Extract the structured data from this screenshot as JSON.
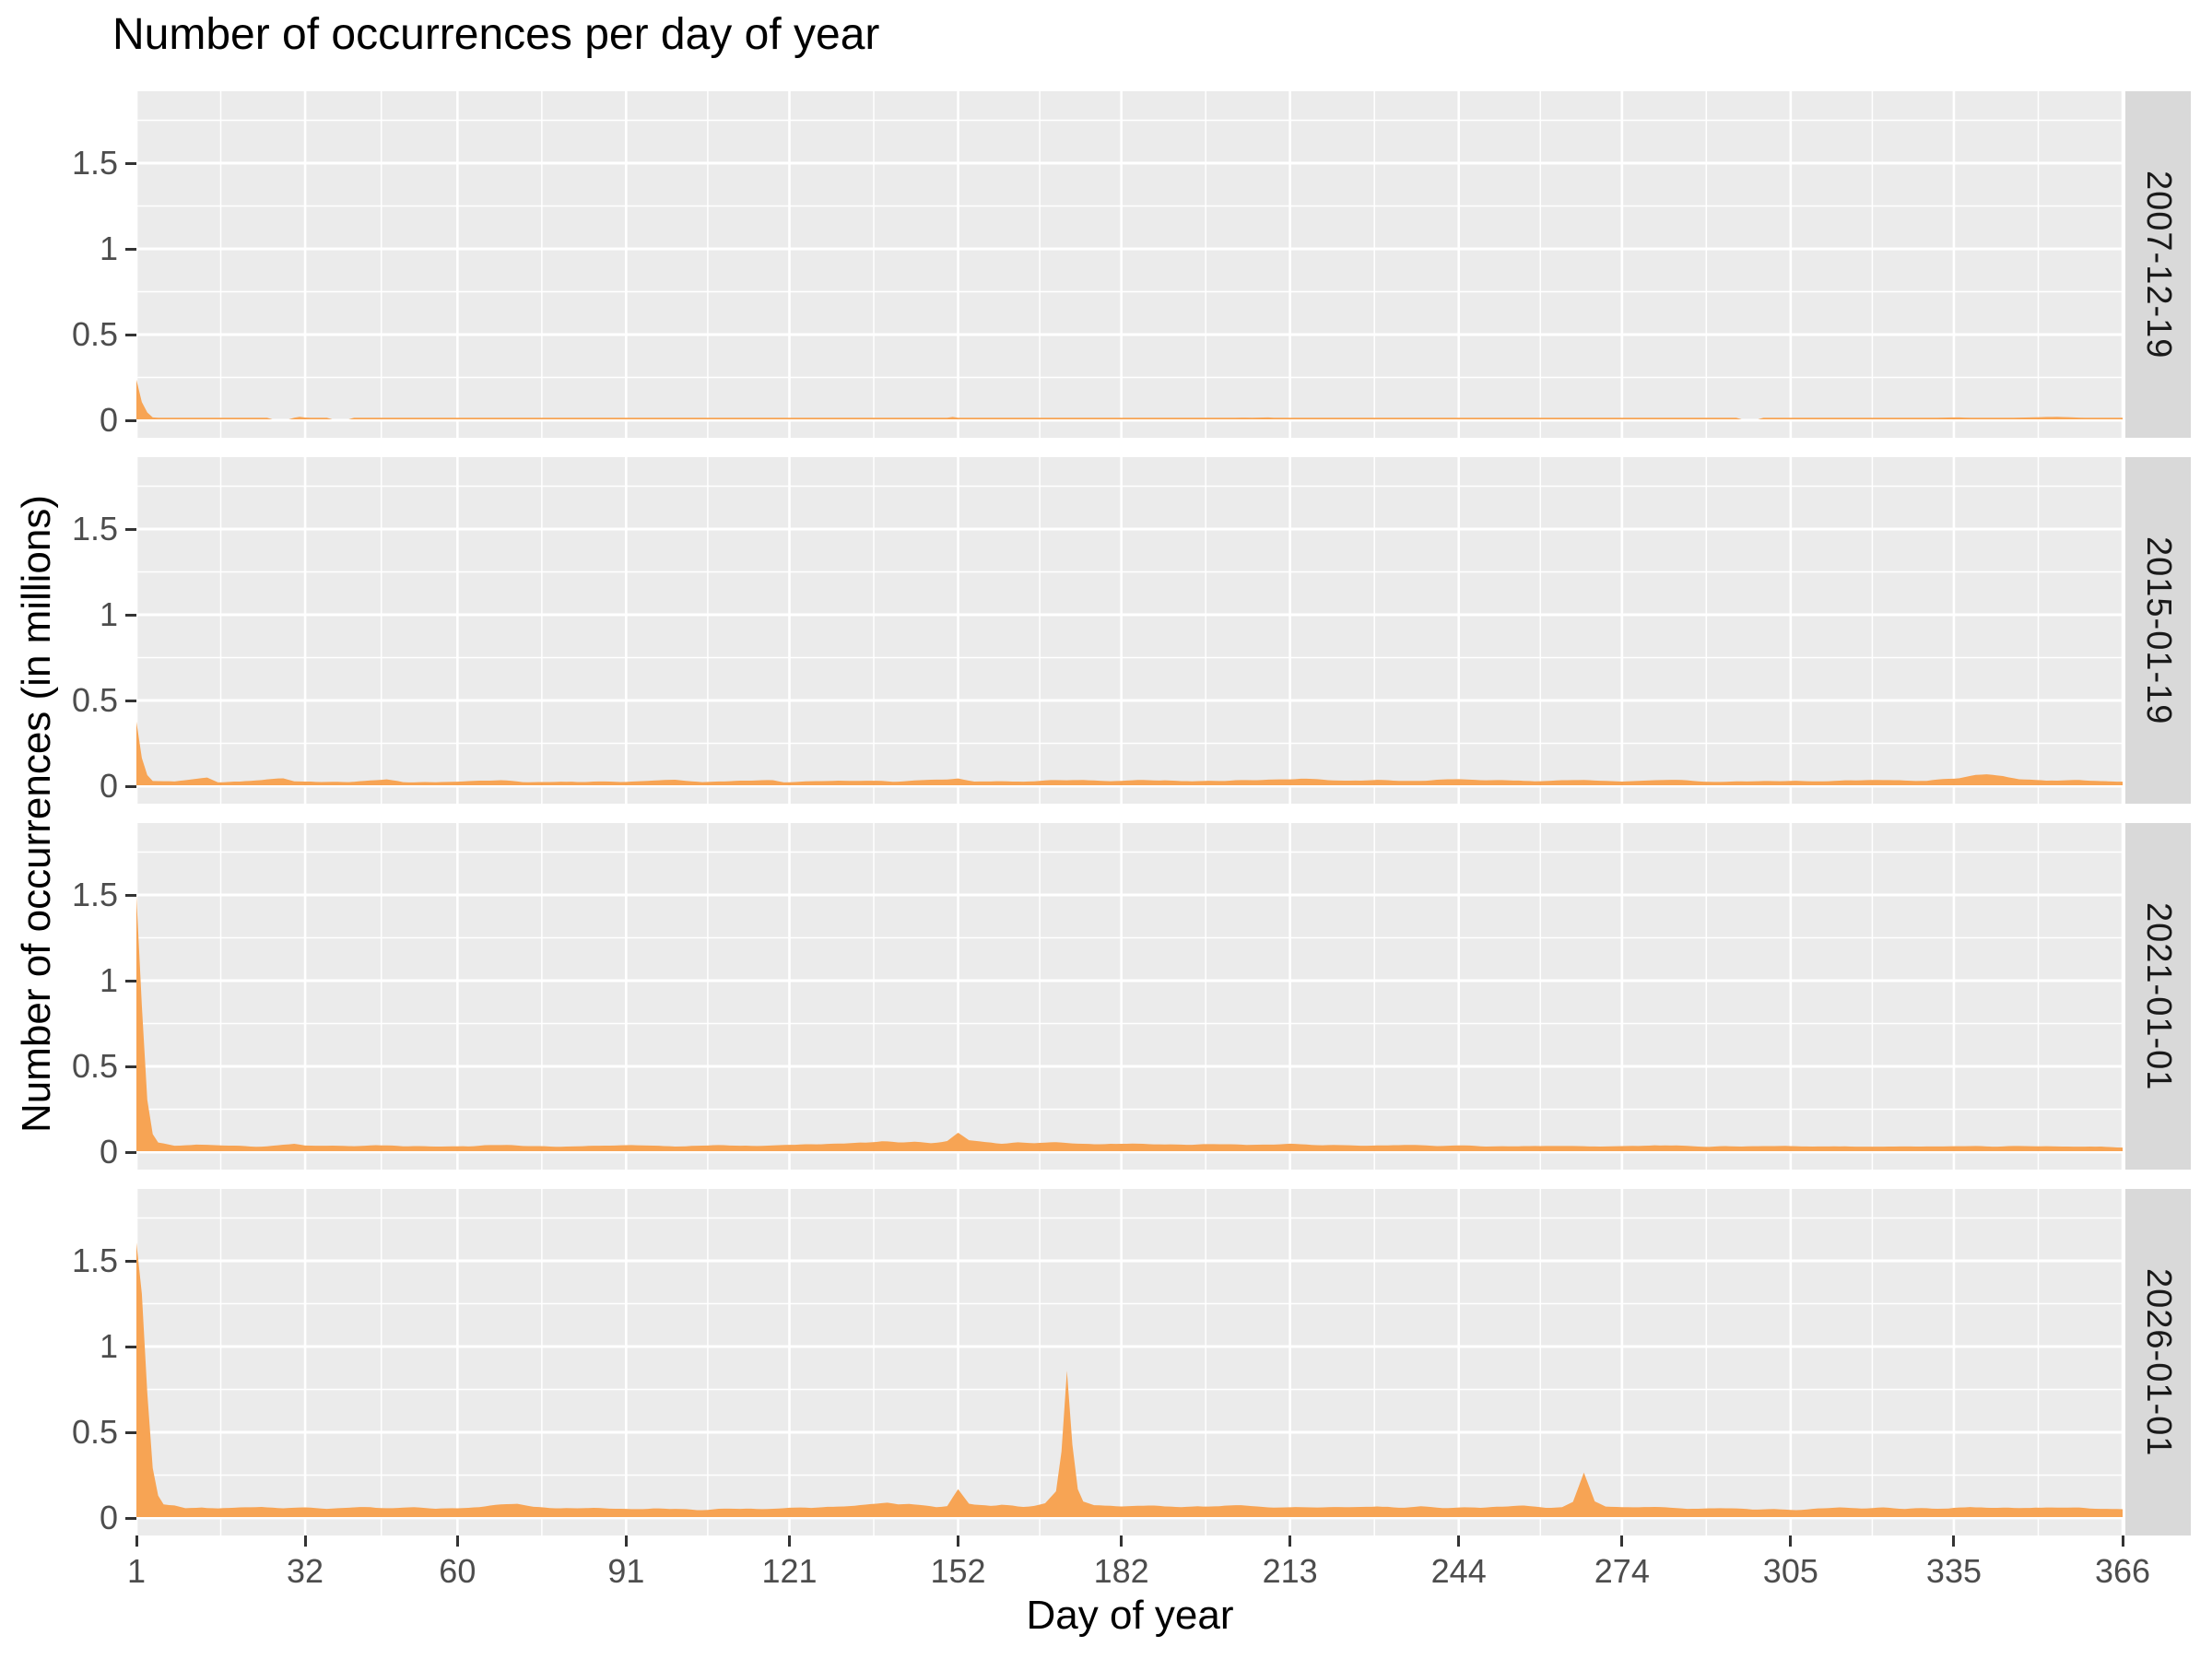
{
  "title": "Number of occurrences per day of year",
  "colors": {
    "area_fill": "#F7A454",
    "panel_background": "#EBEBEB",
    "strip_background": "#D9D9D9",
    "gridline": "#FFFFFF",
    "tick_mark": "#333333",
    "tick_label_text": "#4D4D4D",
    "title_text": "#000000"
  },
  "chart_data": {
    "type": "area",
    "title": "Number of occurrences per day of year",
    "xlabel": "Day of year",
    "ylabel": "Number of occurrences (in millions)",
    "legend": "none",
    "grid": "white major and minor gridlines on grey panels",
    "facet_strip_position": "right",
    "x_ticks": [
      1,
      32,
      60,
      91,
      121,
      152,
      182,
      213,
      244,
      274,
      305,
      335,
      366
    ],
    "y_ticks": [
      0,
      0.5,
      1,
      1.5
    ],
    "y_tick_labels": [
      "0",
      "0.5",
      "1",
      "1.5"
    ],
    "xlim": [
      1,
      366
    ],
    "ylim_display": [
      -0.1,
      1.92
    ],
    "units": "millions of occurrences per day",
    "facets": [
      {
        "label": "2007-12-19",
        "noise": 0.0025,
        "gaps": [
          [
            26,
            29
          ],
          [
            37,
            40
          ],
          [
            296,
            299
          ]
        ],
        "keypoints": [
          [
            1,
            0.23
          ],
          [
            2,
            0.1
          ],
          [
            3,
            0.04
          ],
          [
            4,
            0.012
          ],
          [
            6,
            0.006
          ],
          [
            20,
            0.005
          ],
          [
            30,
            0.006
          ],
          [
            31,
            0.014
          ],
          [
            33,
            0.006
          ],
          [
            60,
            0.005
          ],
          [
            91,
            0.006
          ],
          [
            120,
            0.005
          ],
          [
            150,
            0.008
          ],
          [
            151,
            0.014
          ],
          [
            153,
            0.006
          ],
          [
            182,
            0.006
          ],
          [
            209,
            0.01
          ],
          [
            212,
            0.006
          ],
          [
            244,
            0.005
          ],
          [
            274,
            0.006
          ],
          [
            305,
            0.005
          ],
          [
            330,
            0.007
          ],
          [
            336,
            0.012
          ],
          [
            341,
            0.007
          ],
          [
            354,
            0.014
          ],
          [
            359,
            0.009
          ],
          [
            366,
            0.007
          ]
        ]
      },
      {
        "label": "2015-01-19",
        "noise": 0.006,
        "gaps": [],
        "keypoints": [
          [
            1,
            0.37
          ],
          [
            2,
            0.16
          ],
          [
            3,
            0.06
          ],
          [
            4,
            0.025
          ],
          [
            8,
            0.02
          ],
          [
            14,
            0.045
          ],
          [
            16,
            0.02
          ],
          [
            20,
            0.02
          ],
          [
            28,
            0.04
          ],
          [
            30,
            0.025
          ],
          [
            35,
            0.022
          ],
          [
            40,
            0.02
          ],
          [
            47,
            0.035
          ],
          [
            50,
            0.02
          ],
          [
            55,
            0.018
          ],
          [
            60,
            0.02
          ],
          [
            68,
            0.03
          ],
          [
            72,
            0.02
          ],
          [
            80,
            0.02
          ],
          [
            90,
            0.022
          ],
          [
            100,
            0.035
          ],
          [
            105,
            0.02
          ],
          [
            110,
            0.022
          ],
          [
            118,
            0.03
          ],
          [
            120,
            0.02
          ],
          [
            130,
            0.025
          ],
          [
            140,
            0.022
          ],
          [
            150,
            0.035
          ],
          [
            152,
            0.04
          ],
          [
            155,
            0.022
          ],
          [
            165,
            0.025
          ],
          [
            175,
            0.03
          ],
          [
            180,
            0.025
          ],
          [
            190,
            0.028
          ],
          [
            195,
            0.022
          ],
          [
            205,
            0.03
          ],
          [
            210,
            0.035
          ],
          [
            215,
            0.04
          ],
          [
            220,
            0.028
          ],
          [
            228,
            0.03
          ],
          [
            235,
            0.025
          ],
          [
            244,
            0.035
          ],
          [
            250,
            0.03
          ],
          [
            258,
            0.025
          ],
          [
            265,
            0.03
          ],
          [
            274,
            0.025
          ],
          [
            280,
            0.03
          ],
          [
            290,
            0.025
          ],
          [
            300,
            0.022
          ],
          [
            310,
            0.025
          ],
          [
            320,
            0.03
          ],
          [
            330,
            0.025
          ],
          [
            336,
            0.04
          ],
          [
            339,
            0.06
          ],
          [
            341,
            0.065
          ],
          [
            344,
            0.055
          ],
          [
            347,
            0.035
          ],
          [
            352,
            0.025
          ],
          [
            358,
            0.03
          ],
          [
            362,
            0.022
          ],
          [
            366,
            0.02
          ]
        ]
      },
      {
        "label": "2021-01-01",
        "noise": 0.006,
        "gaps": [],
        "keypoints": [
          [
            1,
            1.49
          ],
          [
            2,
            0.85
          ],
          [
            3,
            0.3
          ],
          [
            4,
            0.1
          ],
          [
            5,
            0.05
          ],
          [
            8,
            0.03
          ],
          [
            12,
            0.035
          ],
          [
            18,
            0.03
          ],
          [
            25,
            0.028
          ],
          [
            30,
            0.04
          ],
          [
            32,
            0.03
          ],
          [
            40,
            0.03
          ],
          [
            45,
            0.035
          ],
          [
            50,
            0.028
          ],
          [
            60,
            0.03
          ],
          [
            70,
            0.035
          ],
          [
            75,
            0.028
          ],
          [
            85,
            0.03
          ],
          [
            91,
            0.032
          ],
          [
            100,
            0.03
          ],
          [
            108,
            0.035
          ],
          [
            115,
            0.03
          ],
          [
            121,
            0.035
          ],
          [
            126,
            0.04
          ],
          [
            130,
            0.045
          ],
          [
            134,
            0.05
          ],
          [
            138,
            0.055
          ],
          [
            141,
            0.05
          ],
          [
            144,
            0.055
          ],
          [
            147,
            0.05
          ],
          [
            150,
            0.06
          ],
          [
            152,
            0.105
          ],
          [
            154,
            0.06
          ],
          [
            157,
            0.05
          ],
          [
            160,
            0.045
          ],
          [
            163,
            0.05
          ],
          [
            166,
            0.045
          ],
          [
            170,
            0.05
          ],
          [
            174,
            0.045
          ],
          [
            178,
            0.04
          ],
          [
            182,
            0.042
          ],
          [
            186,
            0.045
          ],
          [
            190,
            0.04
          ],
          [
            195,
            0.038
          ],
          [
            200,
            0.04
          ],
          [
            205,
            0.035
          ],
          [
            210,
            0.04
          ],
          [
            213,
            0.045
          ],
          [
            218,
            0.035
          ],
          [
            225,
            0.032
          ],
          [
            232,
            0.035
          ],
          [
            240,
            0.03
          ],
          [
            244,
            0.032
          ],
          [
            252,
            0.03
          ],
          [
            260,
            0.032
          ],
          [
            268,
            0.03
          ],
          [
            274,
            0.032
          ],
          [
            280,
            0.035
          ],
          [
            285,
            0.03
          ],
          [
            290,
            0.028
          ],
          [
            300,
            0.03
          ],
          [
            305,
            0.028
          ],
          [
            312,
            0.03
          ],
          [
            320,
            0.028
          ],
          [
            328,
            0.03
          ],
          [
            335,
            0.028
          ],
          [
            342,
            0.03
          ],
          [
            350,
            0.028
          ],
          [
            356,
            0.03
          ],
          [
            360,
            0.026
          ],
          [
            366,
            0.025
          ]
        ]
      },
      {
        "label": "2026-01-01",
        "noise": 0.008,
        "gaps": [],
        "keypoints": [
          [
            1,
            1.6
          ],
          [
            2,
            1.3
          ],
          [
            3,
            0.72
          ],
          [
            4,
            0.28
          ],
          [
            5,
            0.12
          ],
          [
            6,
            0.07
          ],
          [
            8,
            0.065
          ],
          [
            10,
            0.05
          ],
          [
            13,
            0.055
          ],
          [
            16,
            0.05
          ],
          [
            20,
            0.055
          ],
          [
            24,
            0.06
          ],
          [
            28,
            0.05
          ],
          [
            32,
            0.055
          ],
          [
            36,
            0.05
          ],
          [
            40,
            0.055
          ],
          [
            44,
            0.06
          ],
          [
            48,
            0.05
          ],
          [
            52,
            0.055
          ],
          [
            56,
            0.05
          ],
          [
            60,
            0.055
          ],
          [
            64,
            0.06
          ],
          [
            68,
            0.07
          ],
          [
            71,
            0.075
          ],
          [
            74,
            0.06
          ],
          [
            78,
            0.055
          ],
          [
            82,
            0.05
          ],
          [
            86,
            0.055
          ],
          [
            91,
            0.05
          ],
          [
            95,
            0.045
          ],
          [
            100,
            0.05
          ],
          [
            104,
            0.045
          ],
          [
            108,
            0.05
          ],
          [
            112,
            0.045
          ],
          [
            116,
            0.05
          ],
          [
            121,
            0.055
          ],
          [
            125,
            0.05
          ],
          [
            128,
            0.06
          ],
          [
            131,
            0.065
          ],
          [
            134,
            0.07
          ],
          [
            137,
            0.075
          ],
          [
            139,
            0.08
          ],
          [
            141,
            0.07
          ],
          [
            143,
            0.075
          ],
          [
            145,
            0.07
          ],
          [
            148,
            0.06
          ],
          [
            150,
            0.065
          ],
          [
            152,
            0.16
          ],
          [
            154,
            0.08
          ],
          [
            156,
            0.07
          ],
          [
            158,
            0.065
          ],
          [
            160,
            0.07
          ],
          [
            162,
            0.065
          ],
          [
            164,
            0.06
          ],
          [
            166,
            0.065
          ],
          [
            168,
            0.08
          ],
          [
            170,
            0.15
          ],
          [
            171,
            0.38
          ],
          [
            172,
            0.85
          ],
          [
            173,
            0.42
          ],
          [
            174,
            0.16
          ],
          [
            175,
            0.09
          ],
          [
            177,
            0.07
          ],
          [
            180,
            0.065
          ],
          [
            182,
            0.06
          ],
          [
            185,
            0.065
          ],
          [
            188,
            0.07
          ],
          [
            190,
            0.065
          ],
          [
            193,
            0.06
          ],
          [
            196,
            0.065
          ],
          [
            200,
            0.06
          ],
          [
            204,
            0.065
          ],
          [
            208,
            0.06
          ],
          [
            213,
            0.055
          ],
          [
            217,
            0.06
          ],
          [
            221,
            0.055
          ],
          [
            225,
            0.06
          ],
          [
            229,
            0.065
          ],
          [
            233,
            0.055
          ],
          [
            237,
            0.06
          ],
          [
            241,
            0.055
          ],
          [
            244,
            0.06
          ],
          [
            248,
            0.055
          ],
          [
            252,
            0.06
          ],
          [
            256,
            0.065
          ],
          [
            260,
            0.055
          ],
          [
            263,
            0.06
          ],
          [
            265,
            0.09
          ],
          [
            267,
            0.26
          ],
          [
            269,
            0.09
          ],
          [
            271,
            0.06
          ],
          [
            274,
            0.055
          ],
          [
            278,
            0.06
          ],
          [
            282,
            0.055
          ],
          [
            286,
            0.05
          ],
          [
            290,
            0.055
          ],
          [
            294,
            0.05
          ],
          [
            298,
            0.045
          ],
          [
            302,
            0.05
          ],
          [
            306,
            0.045
          ],
          [
            310,
            0.05
          ],
          [
            314,
            0.055
          ],
          [
            318,
            0.05
          ],
          [
            322,
            0.055
          ],
          [
            326,
            0.05
          ],
          [
            330,
            0.055
          ],
          [
            334,
            0.05
          ],
          [
            338,
            0.06
          ],
          [
            342,
            0.055
          ],
          [
            346,
            0.05
          ],
          [
            350,
            0.055
          ],
          [
            354,
            0.05
          ],
          [
            358,
            0.055
          ],
          [
            362,
            0.05
          ],
          [
            366,
            0.045
          ]
        ]
      }
    ]
  }
}
